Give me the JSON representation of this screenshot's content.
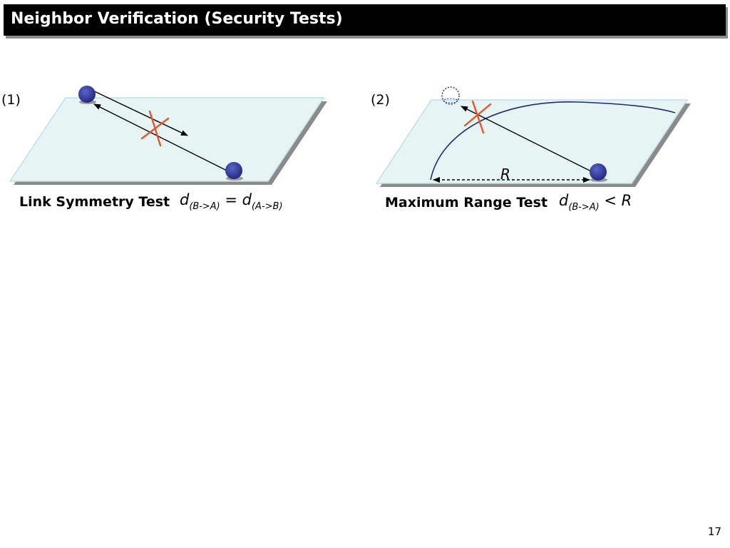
{
  "slide": {
    "title": "Neighbor Verification (Security Tests)",
    "page_number": "17"
  },
  "panel1": {
    "number": "(1)",
    "caption": "Link Symmetry Test",
    "formula": {
      "lhs_d": "d",
      "lhs_sub": "(B->A)",
      "eq": "=",
      "rhs_d": "d",
      "rhs_sub": "(A->B)"
    }
  },
  "panel2": {
    "number": "(2)",
    "caption": "Maximum Range Test",
    "range_label": "R",
    "formula": {
      "d": "d",
      "sub": "(B->A)",
      "op": "<",
      "rhs": "R"
    }
  },
  "colors": {
    "plane_fill": "#e6f4f4",
    "plane_edge": "#bfe0e6",
    "plane_shadow": "#8a8a8a",
    "node": "#2e3592",
    "cross": "#e8552a",
    "arc": "#1f2a7a"
  }
}
